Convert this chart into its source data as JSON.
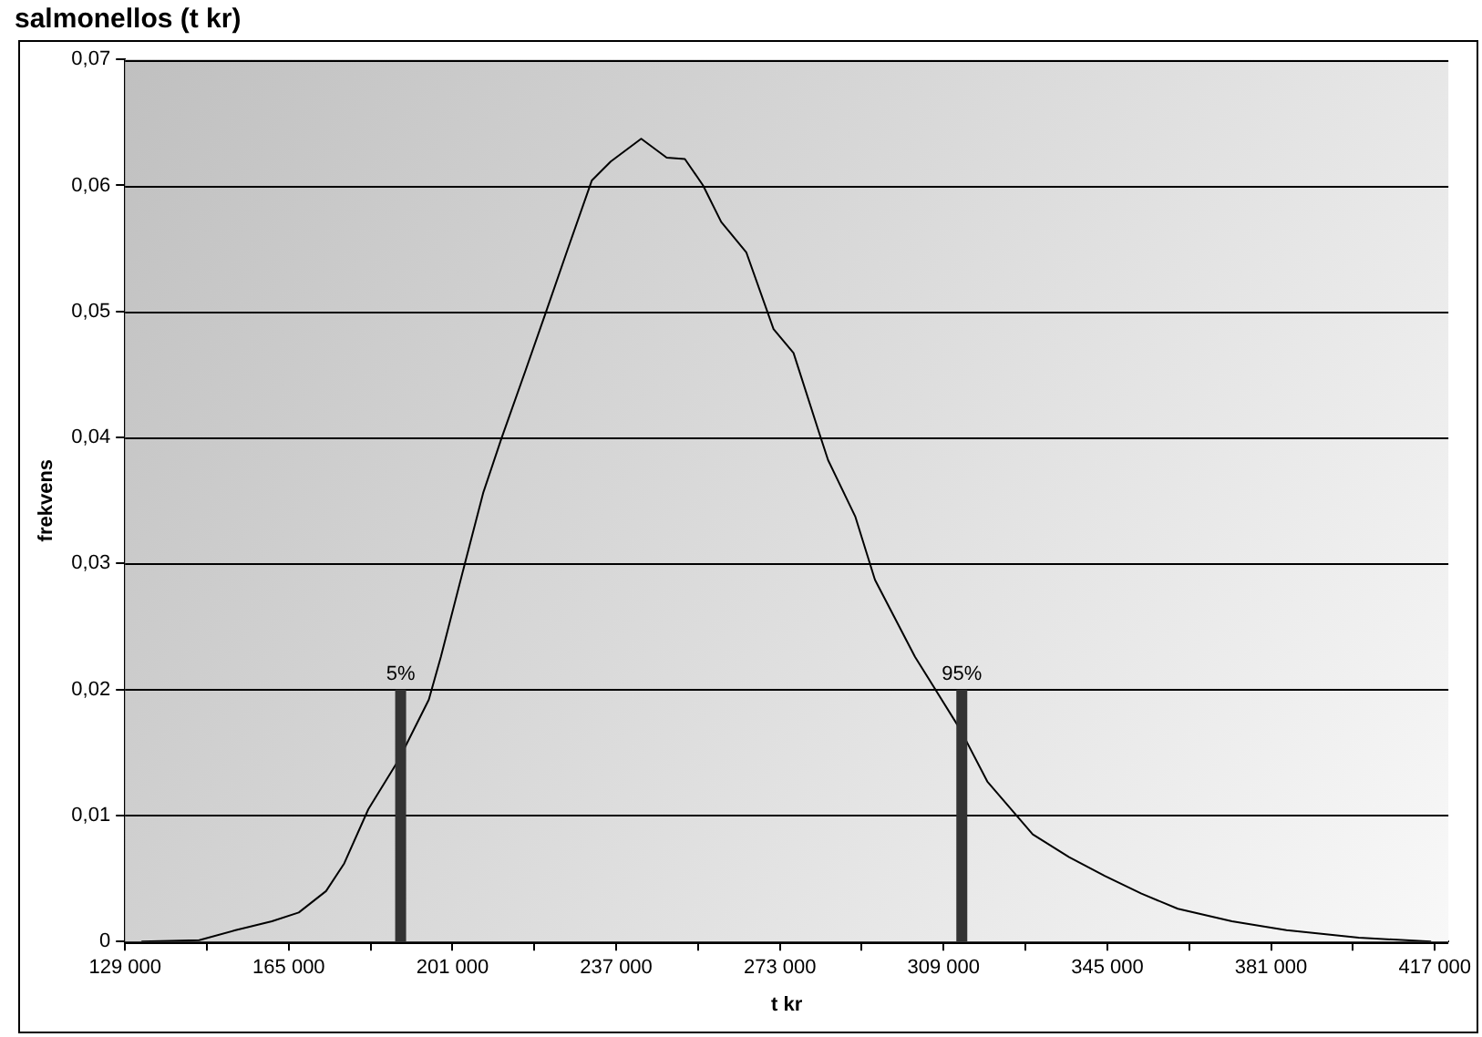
{
  "chart_data": {
    "type": "line",
    "title": "salmonellos (t kr)",
    "xlabel": "t kr",
    "ylabel": "frekvens",
    "xlim": [
      129000,
      420000
    ],
    "xticks": [
      {
        "value": 129000,
        "label": "129 000"
      },
      {
        "value": 147000,
        "label": null
      },
      {
        "value": 165000,
        "label": "165 000"
      },
      {
        "value": 183000,
        "label": null
      },
      {
        "value": 201000,
        "label": "201 000"
      },
      {
        "value": 219000,
        "label": null
      },
      {
        "value": 237000,
        "label": "237 000"
      },
      {
        "value": 255000,
        "label": null
      },
      {
        "value": 273000,
        "label": "273 000"
      },
      {
        "value": 291000,
        "label": null
      },
      {
        "value": 309000,
        "label": "309 000"
      },
      {
        "value": 327000,
        "label": null
      },
      {
        "value": 345000,
        "label": "345 000"
      },
      {
        "value": 363000,
        "label": null
      },
      {
        "value": 381000,
        "label": "381 000"
      },
      {
        "value": 399000,
        "label": null
      },
      {
        "value": 417000,
        "label": "417 000"
      }
    ],
    "ylim": [
      0,
      0.07
    ],
    "yticks": [
      {
        "value": 0,
        "label": "0"
      },
      {
        "value": 0.01,
        "label": "0,01"
      },
      {
        "value": 0.02,
        "label": "0,02"
      },
      {
        "value": 0.03,
        "label": "0,03"
      },
      {
        "value": 0.04,
        "label": "0,04"
      },
      {
        "value": 0.05,
        "label": "0,05"
      },
      {
        "value": 0.06,
        "label": "0,06"
      },
      {
        "value": 0.07,
        "label": "0,07"
      }
    ],
    "grid": "y",
    "legend": false,
    "marker": "none",
    "line_style": "solid",
    "series": [
      {
        "color": "#000000",
        "x": [
          132600,
          145300,
          153300,
          161300,
          167200,
          173200,
          177200,
          182500,
          189150,
          195800,
          198450,
          203800,
          207750,
          211750,
          217050,
          221700,
          226300,
          231650,
          235800,
          242500,
          248100,
          252100,
          256100,
          260100,
          265600,
          271600,
          276000,
          281600,
          283600,
          289600,
          293900,
          302700,
          312700,
          318600,
          328600,
          336600,
          344500,
          352500,
          360500,
          372400,
          384400,
          400300,
          416200
        ],
        "values": [
          0,
          0.0001,
          0.0009,
          0.0016,
          0.0023,
          0.004,
          0.0062,
          0.0105,
          0.0144,
          0.0192,
          0.0226,
          0.0301,
          0.0356,
          0.0399,
          0.0453,
          0.0501,
          0.0549,
          0.0604,
          0.0619,
          0.0637,
          0.0622,
          0.0621,
          0.06,
          0.0571,
          0.0547,
          0.0486,
          0.0467,
          0.0404,
          0.0382,
          0.0337,
          0.0287,
          0.0226,
          0.0168,
          0.0127,
          0.0085,
          0.0067,
          0.0052,
          0.0038,
          0.0026,
          0.0016,
          0.0009,
          0.0003,
          0
        ]
      },
      {
        "type": "bar",
        "color": "#333333",
        "x": [
          189600,
          313000
        ],
        "values": [
          0.02,
          0.02
        ]
      }
    ],
    "annotations": [
      {
        "text": "5%",
        "x": 189600,
        "y": 0.02
      },
      {
        "text": "95%",
        "x": 313000,
        "y": 0.02
      }
    ]
  }
}
